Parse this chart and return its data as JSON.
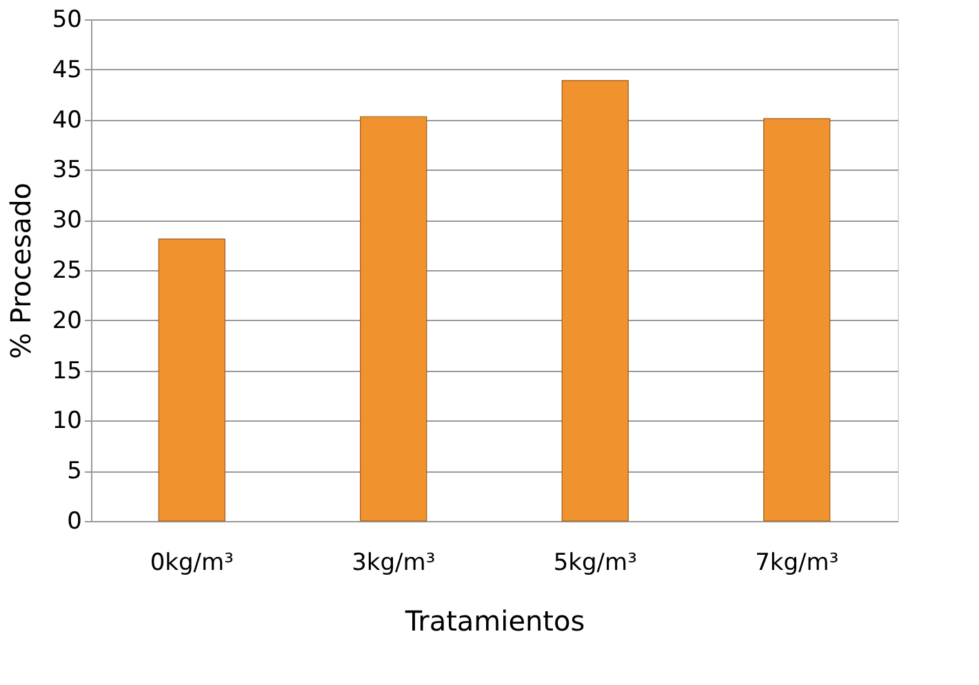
{
  "chart_data": {
    "type": "bar",
    "xlabel": "Tratamientos",
    "ylabel": "% Procesado",
    "categories": [
      "0kg/m³",
      "3kg/m³",
      "5kg/m³",
      "7kg/m³"
    ],
    "values": [
      28.1,
      40.3,
      43.9,
      40.1
    ],
    "color": "#f0922e",
    "ylim": [
      0,
      50
    ],
    "yticks": [
      0,
      5,
      10,
      15,
      20,
      25,
      30,
      35,
      40,
      45,
      50
    ],
    "grid": "y"
  }
}
